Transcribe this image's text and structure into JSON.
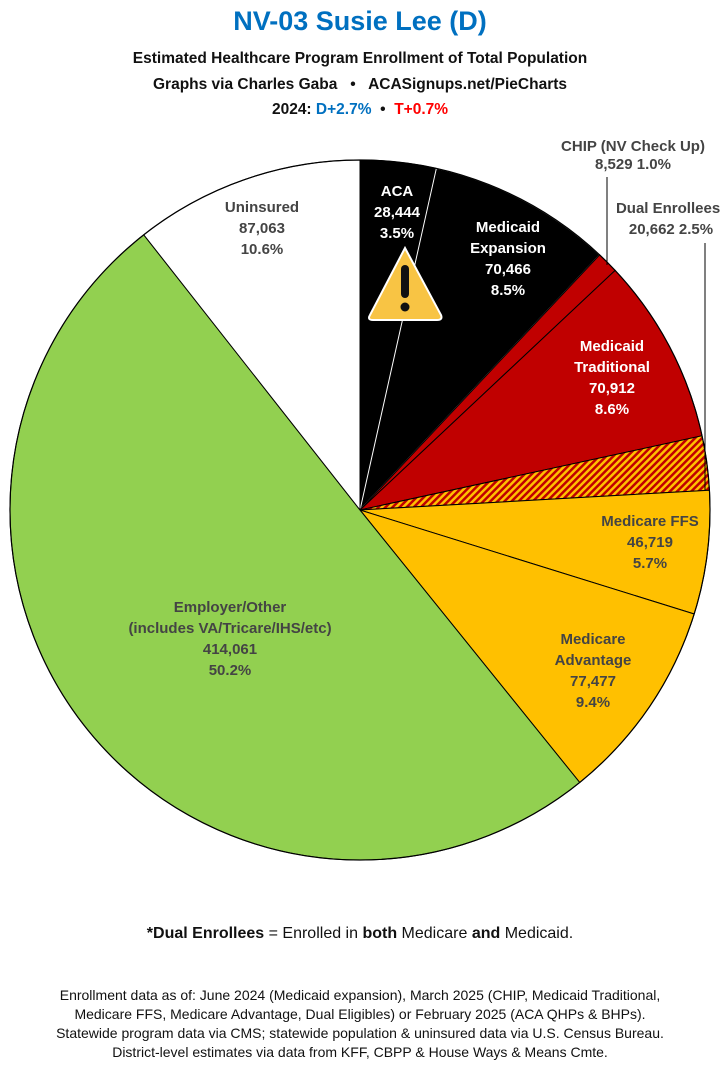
{
  "header": {
    "title": "NV-03 Susie Lee (D)",
    "subtitle": "Estimated Healthcare Program Enrollment of Total Population",
    "credit_left": "Graphs via Charles Gaba",
    "bullet": "•",
    "credit_right": "ACASignups.net/PieCharts",
    "partisan_prefix": "2024:",
    "partisan_d": "D+2.7%",
    "partisan_t": "T+0.7%",
    "colors": {
      "title": "#0070c0",
      "d": "#0070c0",
      "t": "#ff0000"
    }
  },
  "chart_data": {
    "type": "pie",
    "start": "top",
    "direction": "clockwise",
    "slices": [
      {
        "label": "ACA",
        "value": 28444,
        "percent": 3.5,
        "color": "#000000",
        "text_color": "#ffffff",
        "icon": "warning-icon"
      },
      {
        "label": "Medicaid Expansion",
        "value": 70466,
        "percent": 8.5,
        "color": "#000000",
        "text_color": "#ffffff"
      },
      {
        "label": "CHIP (NV Check Up)",
        "value": 8529,
        "percent": 1.0,
        "color": "#c00000",
        "text_color": "#444444"
      },
      {
        "label": "Medicaid Traditional",
        "value": 70912,
        "percent": 8.6,
        "color": "#c00000",
        "text_color": "#ffffff"
      },
      {
        "label": "Dual Enrollees*",
        "value": 20662,
        "percent": 2.5,
        "color": "hatched red/yellow",
        "text_color": "#444444"
      },
      {
        "label": "Medicare FFS",
        "value": 46719,
        "percent": 5.7,
        "color": "#ffc000",
        "text_color": "#444444"
      },
      {
        "label": "Medicare Advantage",
        "value": 77477,
        "percent": 9.4,
        "color": "#ffc000",
        "text_color": "#444444"
      },
      {
        "label": "Employer/Other (includes VA/Tricare/IHS/etc)",
        "value": 414061,
        "percent": 50.2,
        "color": "#92d050",
        "text_color": "#444444"
      },
      {
        "label": "Uninsured",
        "value": 87063,
        "percent": 10.6,
        "color": "#ffffff",
        "text_color": "#444444"
      }
    ],
    "display_labels": [
      [
        "ACA",
        "28,444",
        "3.5%"
      ],
      [
        "Medicaid",
        "Expansion",
        "70,466",
        "8.5%"
      ],
      [
        "CHIP (NV Check Up)",
        "8,529 1.0%"
      ],
      [
        "Medicaid",
        "Traditional",
        "70,912",
        "8.6%"
      ],
      [
        "Dual Enrollees*",
        "20,662 2.5%"
      ],
      [
        "Medicare FFS",
        "46,719",
        "5.7%"
      ],
      [
        "Medicare",
        "Advantage",
        "77,477",
        "9.4%"
      ],
      [
        "Employer/Other",
        "(includes VA/Tricare/IHS/etc)",
        "414,061",
        "50.2%"
      ],
      [
        "Uninsured",
        "87,063",
        "10.6%"
      ]
    ]
  },
  "footnote": {
    "b1": "*Dual Enrollees",
    "t1": " = Enrolled in ",
    "b2": "both",
    "t2": " Medicare ",
    "b3": "and",
    "t3": " Medicaid."
  },
  "source": {
    "line1": "Enrollment data as of: June 2024 (Medicaid expansion), March 2025 (CHIP, Medicaid Traditional,",
    "line2": "Medicare FFS, Medicare Advantage, Dual Eligibles) or February 2025 (ACA QHPs & BHPs).",
    "line3": "Statewide program data via CMS; statewide population & uninsured data via U.S. Census Bureau.",
    "line4": "District-level estimates via data from KFF, CBPP & House Ways & Means Cmte."
  }
}
